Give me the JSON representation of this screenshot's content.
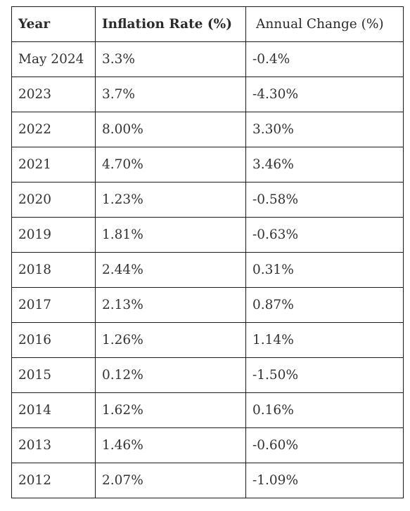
{
  "table": {
    "headers": [
      "Year",
      "Inflation Rate (%)",
      "Annual Change (%)"
    ],
    "rows": [
      [
        "May 2024",
        "3.3%",
        "-0.4%"
      ],
      [
        "2023",
        "3.7%",
        "-4.30%"
      ],
      [
        "2022",
        "8.00%",
        "3.30%"
      ],
      [
        "2021",
        "4.70%",
        "3.46%"
      ],
      [
        "2020",
        "1.23%",
        "-0.58%"
      ],
      [
        "2019",
        "1.81%",
        "-0.63%"
      ],
      [
        "2018",
        "2.44%",
        "0.31%"
      ],
      [
        "2017",
        "2.13%",
        "0.87%"
      ],
      [
        "2016",
        "1.26%",
        "1.14%"
      ],
      [
        "2015",
        "0.12%",
        "-1.50%"
      ],
      [
        "2014",
        "1.62%",
        "0.16%"
      ],
      [
        "2013",
        "1.46%",
        "-0.60%"
      ],
      [
        "2012",
        "2.07%",
        "-1.09%"
      ]
    ]
  }
}
